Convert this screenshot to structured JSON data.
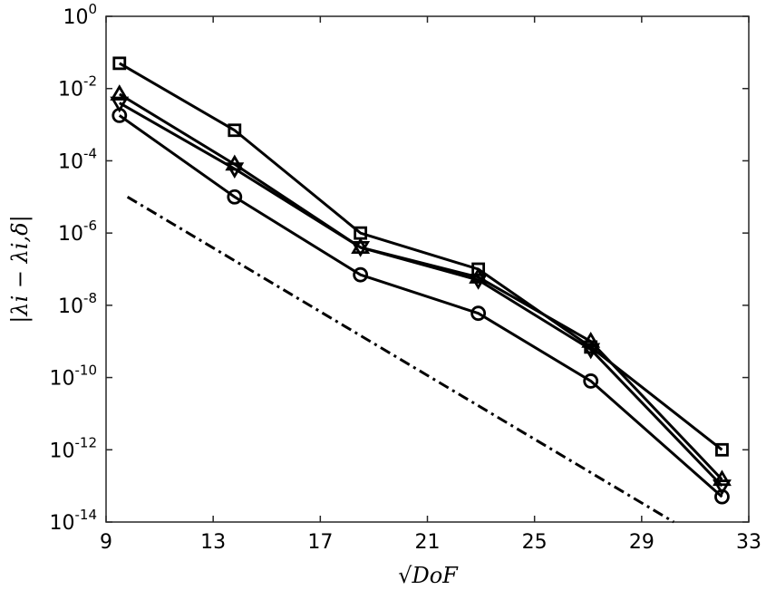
{
  "chart_data": {
    "type": "line",
    "title": "",
    "xlabel": "√DoF",
    "ylabel": "|λi − λi,δ|",
    "x_scale": "linear",
    "y_scale": "log",
    "xlim": [
      9,
      33
    ],
    "ylim": [
      1e-14,
      1
    ],
    "grid": false,
    "legend": "none",
    "x_ticks": [
      9,
      13,
      17,
      21,
      25,
      29,
      33
    ],
    "y_ticks": [
      {
        "base": "10",
        "exp": "0",
        "value": 1
      },
      {
        "base": "10",
        "exp": "-2",
        "value": 0.01
      },
      {
        "base": "10",
        "exp": "-4",
        "value": 0.0001
      },
      {
        "base": "10",
        "exp": "-6",
        "value": 1e-06
      },
      {
        "base": "10",
        "exp": "-8",
        "value": 1e-08
      },
      {
        "base": "10",
        "exp": "-10",
        "value": 1e-10
      },
      {
        "base": "10",
        "exp": "-12",
        "value": 1e-12
      },
      {
        "base": "10",
        "exp": "-14",
        "value": 1e-14
      }
    ],
    "x": [
      9.5,
      13.8,
      18.5,
      22.9,
      27.1,
      32.0
    ],
    "series": [
      {
        "marker": "square",
        "values": [
          0.05,
          0.0007,
          1e-06,
          1e-07,
          7e-10,
          1e-12
        ]
      },
      {
        "marker": "triangle-up",
        "values": [
          0.007,
          8e-05,
          4e-07,
          6e-08,
          1e-09,
          1.5e-13
        ]
      },
      {
        "marker": "triangle-down",
        "values": [
          0.004,
          6e-05,
          4e-07,
          5e-08,
          6e-10,
          1e-13
        ]
      },
      {
        "marker": "circle",
        "values": [
          0.0018,
          1e-05,
          7e-08,
          6e-09,
          8e-11,
          5e-14
        ]
      }
    ],
    "reference_line": {
      "style": "dash-dot",
      "x": [
        9.8,
        30.2
      ],
      "y": [
        1e-05,
        1e-14
      ]
    },
    "colors": {
      "line": "#000000",
      "background": "#ffffff"
    }
  }
}
